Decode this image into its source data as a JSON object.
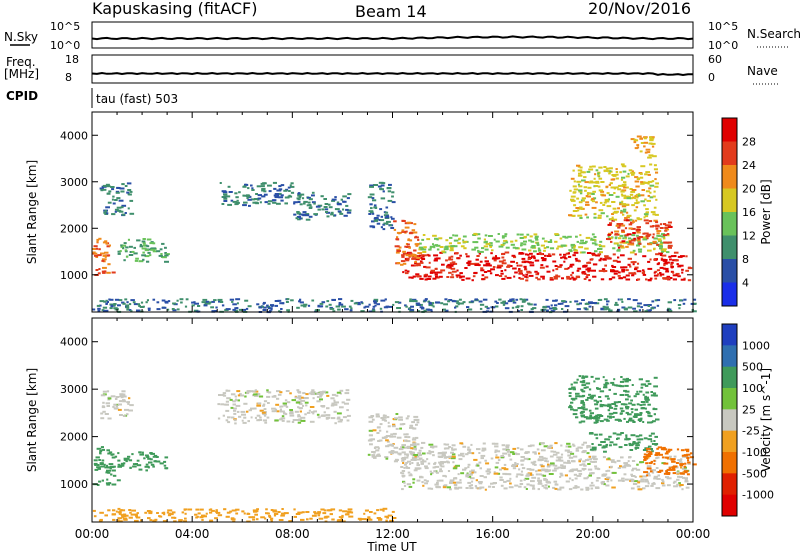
{
  "header": {
    "station": "Kapuskasing (fitACF)",
    "beam": "Beam 14",
    "date": "20/Nov/2016"
  },
  "panels": {
    "nsky_label": "N.Sky",
    "nsearch_label": "N.Search",
    "freq_label_top": "Freq.",
    "freq_label_unit": "[MHz]",
    "nave_label": "Nave",
    "cpid_label": "CPID",
    "cpid_text": "tau (fast) 503",
    "noise_ticks_left": [
      "10^5",
      "10^0"
    ],
    "noise_ticks_right": [
      "10^5",
      "10^0"
    ],
    "freq_ticks_left": [
      "18",
      "8"
    ],
    "freq_ticks_right": [
      "60",
      "0"
    ]
  },
  "chart_data": [
    {
      "type": "heatmap",
      "name_id": "power",
      "xlabel": "Time UT",
      "ylabel": "Slant Range [km]",
      "colorbar_label": "Power [dB]",
      "x_ticks": [
        "00:00",
        "04:00",
        "08:00",
        "12:00",
        "16:00",
        "20:00",
        "00:00"
      ],
      "y_ticks": [
        1000,
        2000,
        3000,
        4000
      ],
      "xlim_hours": [
        0,
        24
      ],
      "ylim": [
        200,
        4500
      ],
      "colorbar_ticks": [
        4,
        8,
        12,
        16,
        20,
        24,
        28
      ],
      "colorbar_colors": [
        "#1a2ee8",
        "#2a4fa6",
        "#3f8f6c",
        "#69c25a",
        "#d7c822",
        "#ef8a1b",
        "#e23b1c",
        "#e00000"
      ],
      "regions": [
        {
          "t": [
            12.3,
            23.8
          ],
          "r": [
            900,
            1500
          ],
          "level": 27
        },
        {
          "t": [
            13.0,
            23.0
          ],
          "r": [
            1500,
            1900
          ],
          "level": 13
        },
        {
          "t": [
            12.0,
            13.0
          ],
          "r": [
            1200,
            2200
          ],
          "level": 22
        },
        {
          "t": [
            20.5,
            23.0
          ],
          "r": [
            1600,
            2200
          ],
          "level": 24
        },
        {
          "t": [
            0.0,
            0.8
          ],
          "r": [
            1000,
            1800
          ],
          "level": 22
        },
        {
          "t": [
            1.0,
            3.0
          ],
          "r": [
            1300,
            1800
          ],
          "level": 10
        },
        {
          "t": [
            0.0,
            24.0
          ],
          "r": [
            220,
            500
          ],
          "level": 6
        },
        {
          "t": [
            0.3,
            1.5
          ],
          "r": [
            2300,
            3000
          ],
          "level": 7
        },
        {
          "t": [
            5.0,
            8.0
          ],
          "r": [
            2500,
            3000
          ],
          "level": 7
        },
        {
          "t": [
            8.0,
            10.2
          ],
          "r": [
            2200,
            2800
          ],
          "level": 7
        },
        {
          "t": [
            11.0,
            12.0
          ],
          "r": [
            2000,
            3000
          ],
          "level": 6
        },
        {
          "t": [
            19.0,
            22.5
          ],
          "r": [
            2200,
            3400
          ],
          "level": 16
        },
        {
          "t": [
            21.5,
            22.4
          ],
          "r": [
            3500,
            4000
          ],
          "level": 18
        }
      ]
    },
    {
      "type": "heatmap",
      "name_id": "velocity",
      "xlabel": "Time UT",
      "ylabel": "Slant Range [km]",
      "colorbar_label": "Velocity [m s^-1]",
      "x_ticks": [
        "00:00",
        "04:00",
        "08:00",
        "12:00",
        "16:00",
        "20:00",
        "00:00"
      ],
      "y_ticks": [
        1000,
        2000,
        3000,
        4000
      ],
      "xlim_hours": [
        0,
        24
      ],
      "ylim": [
        200,
        4500
      ],
      "colorbar_ticks": [
        1000,
        500,
        100,
        25,
        -25,
        -100,
        -500,
        -1000
      ],
      "colorbar_colors": [
        "#1f3fbf",
        "#2f6fb0",
        "#3f9a5a",
        "#72c23a",
        "#c8c8c0",
        "#f0a020",
        "#f07000",
        "#e02000",
        "#e00000"
      ],
      "regions": [
        {
          "t": [
            12.3,
            23.8
          ],
          "r": [
            900,
            1600
          ],
          "level": 0
        },
        {
          "t": [
            11.0,
            13.0
          ],
          "r": [
            1500,
            2500
          ],
          "level": 0
        },
        {
          "t": [
            12.5,
            20.0
          ],
          "r": [
            1600,
            1900
          ],
          "level": 0
        },
        {
          "t": [
            19.8,
            22.5
          ],
          "r": [
            1700,
            2100
          ],
          "level": 150
        },
        {
          "t": [
            22.0,
            24.0
          ],
          "r": [
            1200,
            1800
          ],
          "level": -200
        },
        {
          "t": [
            0.0,
            1.0
          ],
          "r": [
            1000,
            1800
          ],
          "level": 150
        },
        {
          "t": [
            1.0,
            3.0
          ],
          "r": [
            1300,
            1700
          ],
          "level": 300
        },
        {
          "t": [
            0.0,
            12.0
          ],
          "r": [
            230,
            500
          ],
          "level": -60
        },
        {
          "t": [
            0.3,
            1.5
          ],
          "r": [
            2400,
            3000
          ],
          "level": 0
        },
        {
          "t": [
            5.0,
            10.2
          ],
          "r": [
            2300,
            3000
          ],
          "level": 0
        },
        {
          "t": [
            19.0,
            22.5
          ],
          "r": [
            2300,
            3300
          ],
          "level": 150
        }
      ]
    }
  ]
}
